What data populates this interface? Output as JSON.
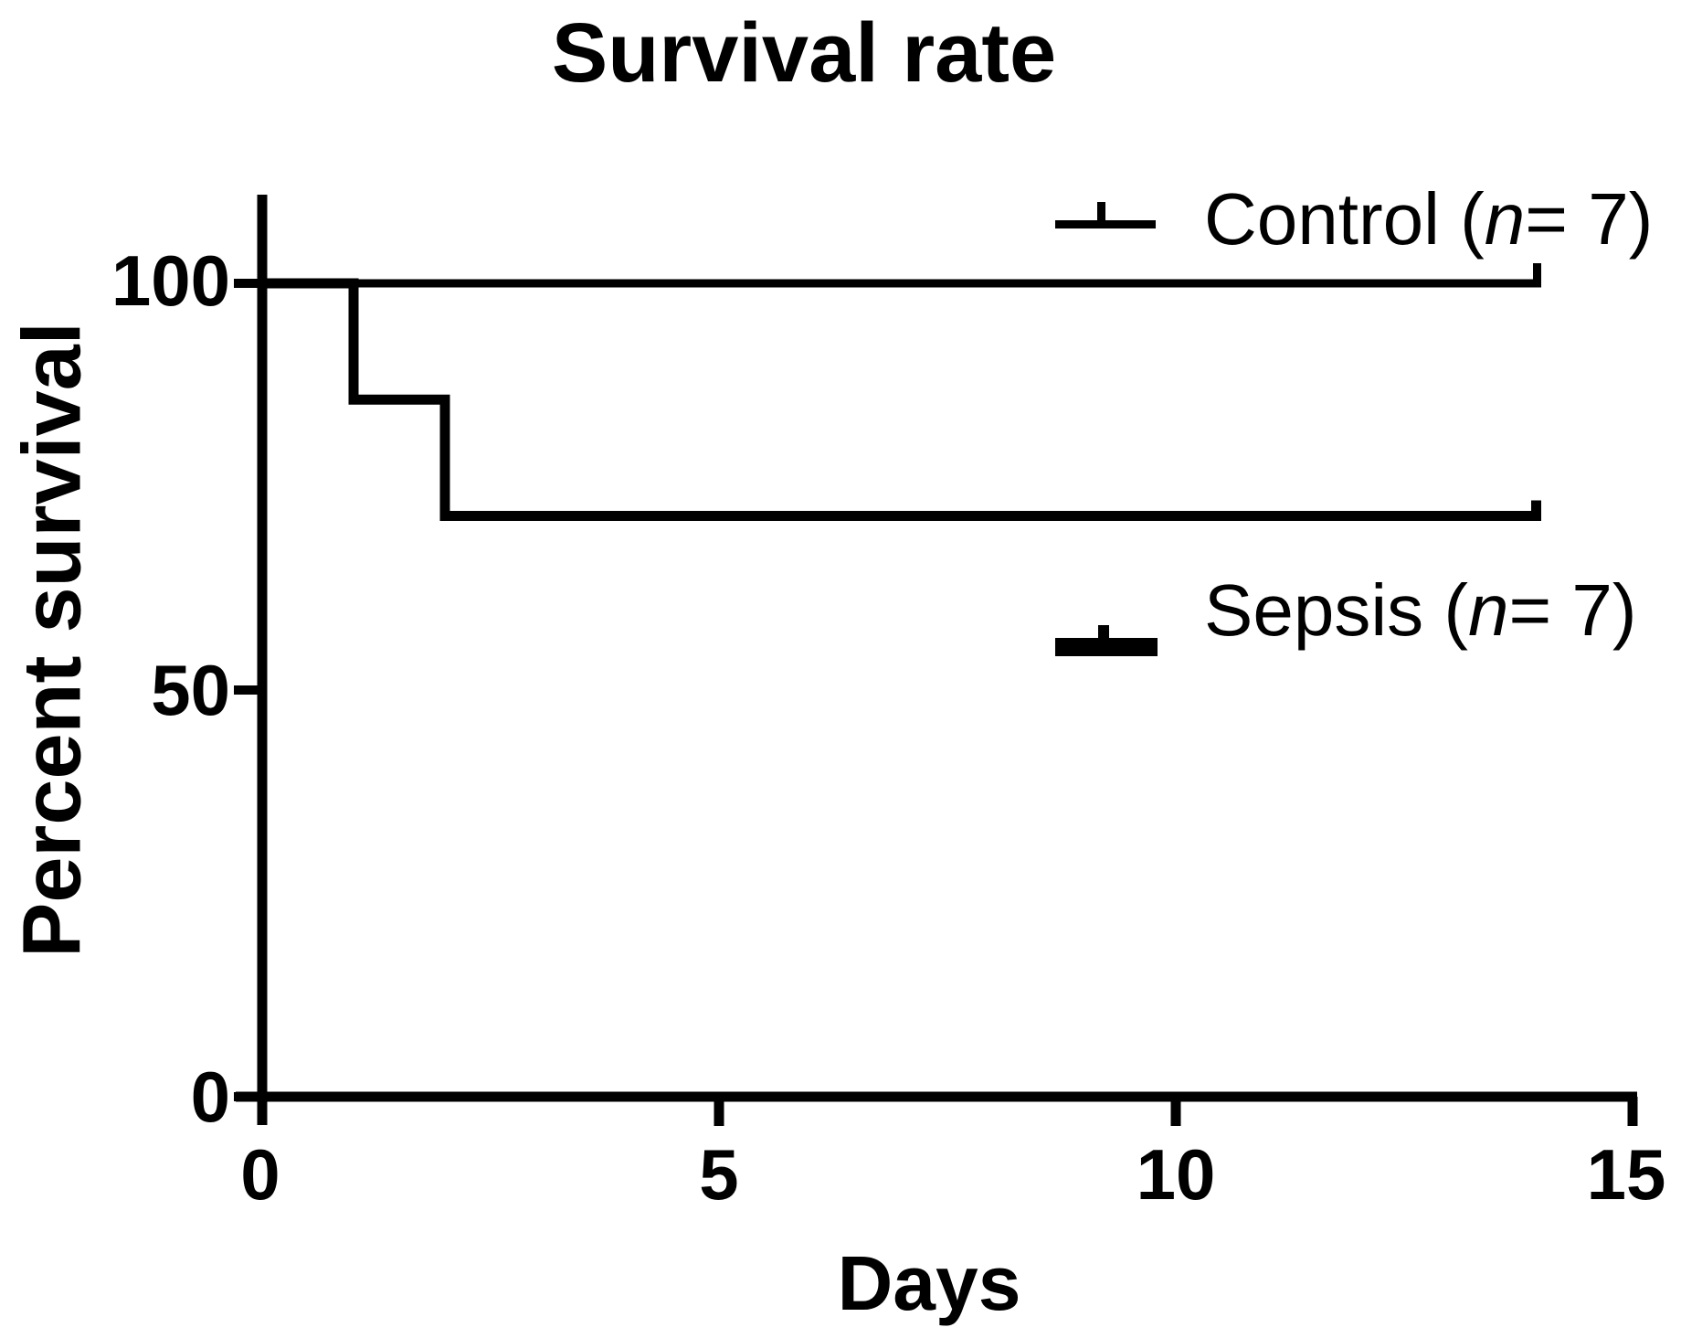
{
  "title": "Survival rate",
  "axes": {
    "y_label": "Percent survival",
    "x_label": "Days",
    "y_ticks": [
      "100",
      "50",
      "0"
    ],
    "x_ticks": [
      "0",
      "5",
      "10",
      "15"
    ]
  },
  "legend": {
    "control": {
      "pre": "Control (",
      "var": "n",
      "post": "= 7)"
    },
    "sepsis": {
      "pre": "Sepsis (",
      "var": "n",
      "post": "= 7)"
    }
  },
  "colors": {
    "line": "#000000",
    "background": "#ffffff"
  },
  "chart_data": {
    "type": "line",
    "subtype": "kaplan-meier-step",
    "title": "Survival rate",
    "xlabel": "Days",
    "ylabel": "Percent survival",
    "xlim": [
      0,
      15
    ],
    "ylim": [
      0,
      110
    ],
    "x_ticks": [
      0,
      5,
      10,
      15
    ],
    "y_ticks": [
      0,
      50,
      100
    ],
    "grid": false,
    "legend_position": "inside-right",
    "series": [
      {
        "name": "Control (n= 7)",
        "n": 7,
        "points": [
          [
            0,
            100
          ],
          [
            14,
            100
          ]
        ],
        "events": [],
        "censored": [
          [
            14,
            100
          ]
        ],
        "final_percent": 100
      },
      {
        "name": "Sepsis (n= 7)",
        "n": 7,
        "points": [
          [
            0,
            100
          ],
          [
            1,
            100
          ],
          [
            1,
            85.7
          ],
          [
            2,
            85.7
          ],
          [
            2,
            71.4
          ],
          [
            14,
            71.4
          ]
        ],
        "events": [
          {
            "day": 1,
            "percent_after": 85.7
          },
          {
            "day": 2,
            "percent_after": 71.4
          }
        ],
        "censored": [
          [
            14,
            71.4
          ]
        ],
        "final_percent": 71.4
      }
    ]
  }
}
